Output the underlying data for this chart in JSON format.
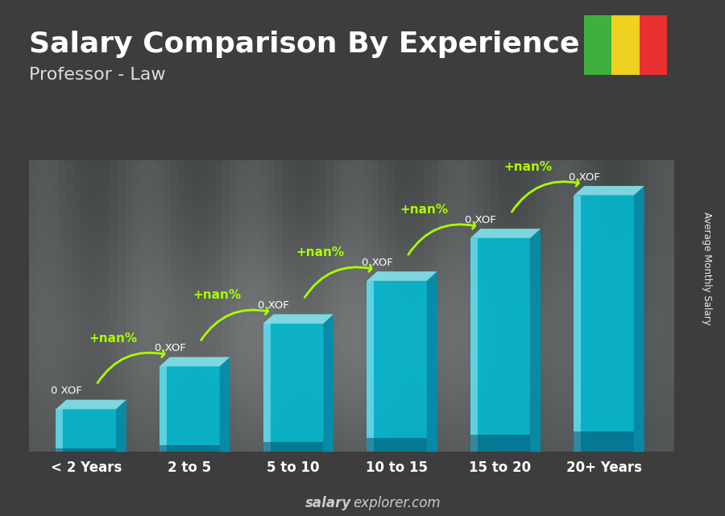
{
  "title": "Salary Comparison By Experience",
  "subtitle": "Professor - Law",
  "ylabel": "Average Monthly Salary",
  "categories": [
    "< 2 Years",
    "2 to 5",
    "5 to 10",
    "10 to 15",
    "15 to 20",
    "20+ Years"
  ],
  "bar_heights": [
    1,
    2,
    3,
    4,
    5,
    6
  ],
  "bar_label": "0 XOF",
  "pct_label": "+nan%",
  "bar_face_color": "#00bcd4",
  "bar_top_color": "#80e5f0",
  "bar_side_color": "#0090b0",
  "bar_highlight_color": "#b0f0ff",
  "title_color": "#ffffff",
  "subtitle_color": "#dddddd",
  "label_color": "#ffffff",
  "pct_color": "#aaff00",
  "arrow_color": "#aaff00",
  "tick_color": "#ffffff",
  "title_fontsize": 26,
  "subtitle_fontsize": 16,
  "watermark": "salaryexplorer.com",
  "watermark_bold": "salary",
  "watermark_normal": "explorer.com",
  "watermark_color": "#cccccc",
  "mali_flag_colors": [
    "#3db03d",
    "#f0d020",
    "#e83030"
  ],
  "bg_dark": "#3a3a3a",
  "bg_mid": "#606060",
  "bg_light": "#888888"
}
